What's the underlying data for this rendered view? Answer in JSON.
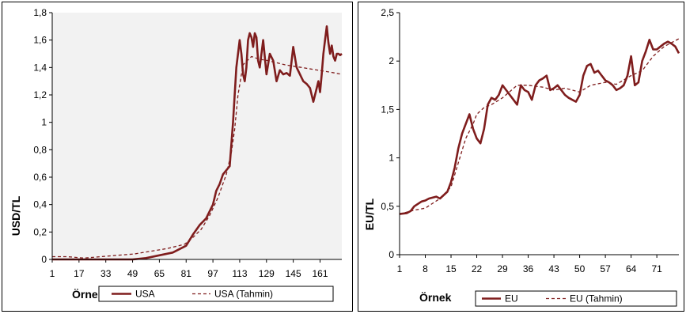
{
  "charts": [
    {
      "type": "line",
      "ylabel": "USD/TL",
      "xlabel": "Örnek",
      "ylim": [
        0,
        1.8
      ],
      "yticks": [
        "0",
        "0,2",
        "0,4",
        "0,6",
        "0,8",
        "1",
        "1,2",
        "1,4",
        "1,6",
        "1,8"
      ],
      "xlim": [
        1,
        174
      ],
      "xticks": [
        "1",
        "17",
        "33",
        "49",
        "65",
        "81",
        "97",
        "113",
        "129",
        "145",
        "161"
      ],
      "grid": false,
      "plot_background": "#f2f2f2",
      "legend_position": "bottom",
      "series": [
        {
          "name": "USA",
          "style": "solid",
          "color": "#7f1d1d",
          "x": [
            1,
            9,
            17,
            25,
            33,
            41,
            49,
            57,
            65,
            73,
            81,
            85,
            89,
            93,
            97,
            99,
            101,
            103,
            105,
            107,
            109,
            111,
            112,
            113,
            114,
            115,
            116,
            117,
            118,
            119,
            120,
            121,
            122,
            123,
            124,
            125,
            127,
            129,
            131,
            133,
            135,
            137,
            139,
            141,
            143,
            145,
            147,
            149,
            151,
            153,
            155,
            157,
            159,
            160,
            161,
            162,
            163,
            164,
            165,
            166,
            167,
            168,
            169,
            170,
            171,
            172,
            173,
            174
          ],
          "y": [
            0.0,
            0.0,
            0.0,
            0.0,
            0.0,
            0.0,
            0.0,
            0.01,
            0.03,
            0.05,
            0.1,
            0.18,
            0.25,
            0.3,
            0.4,
            0.5,
            0.55,
            0.62,
            0.65,
            0.68,
            1.0,
            1.4,
            1.5,
            1.6,
            1.5,
            1.35,
            1.3,
            1.4,
            1.6,
            1.65,
            1.62,
            1.55,
            1.65,
            1.62,
            1.45,
            1.4,
            1.6,
            1.35,
            1.5,
            1.45,
            1.3,
            1.38,
            1.35,
            1.36,
            1.34,
            1.55,
            1.4,
            1.35,
            1.3,
            1.28,
            1.25,
            1.15,
            1.25,
            1.3,
            1.22,
            1.35,
            1.5,
            1.6,
            1.7,
            1.58,
            1.5,
            1.56,
            1.48,
            1.45,
            1.5,
            1.5,
            1.49,
            1.5
          ]
        },
        {
          "name": "USA (Tahmin)",
          "style": "dashed",
          "color": "#7f1d1d",
          "x": [
            1,
            10,
            20,
            30,
            40,
            50,
            60,
            70,
            80,
            85,
            90,
            95,
            100,
            105,
            108,
            110,
            112,
            115,
            120,
            125,
            130,
            140,
            150,
            160,
            170,
            174
          ],
          "y": [
            0.02,
            0.02,
            0.01,
            0.02,
            0.03,
            0.04,
            0.06,
            0.08,
            0.11,
            0.16,
            0.22,
            0.32,
            0.45,
            0.62,
            0.78,
            0.95,
            1.2,
            1.42,
            1.48,
            1.46,
            1.45,
            1.42,
            1.4,
            1.38,
            1.36,
            1.35
          ]
        }
      ]
    },
    {
      "type": "line",
      "ylabel": "EU/TL",
      "xlabel": "Örnek",
      "ylim": [
        0,
        2.5
      ],
      "yticks": [
        "0",
        "0,5",
        "1",
        "1,5",
        "2",
        "2,5"
      ],
      "xlim": [
        1,
        77
      ],
      "xticks": [
        "1",
        "8",
        "15",
        "22",
        "29",
        "36",
        "43",
        "50",
        "57",
        "64",
        "71"
      ],
      "grid": false,
      "plot_background": "#ffffff",
      "legend_position": "bottom",
      "series": [
        {
          "name": "EU",
          "style": "solid",
          "color": "#7f1d1d",
          "x": [
            1,
            3,
            4,
            5,
            7,
            8,
            9,
            11,
            12,
            14,
            15,
            16,
            17,
            18,
            19,
            20,
            21,
            22,
            23,
            24,
            25,
            26,
            27,
            28,
            29,
            30,
            31,
            32,
            33,
            34,
            35,
            36,
            37,
            38,
            39,
            40,
            41,
            42,
            43,
            44,
            45,
            46,
            47,
            48,
            49,
            50,
            51,
            52,
            53,
            54,
            55,
            56,
            57,
            58,
            59,
            60,
            61,
            62,
            63,
            64,
            65,
            66,
            67,
            68,
            69,
            70,
            71,
            72,
            73,
            74,
            75,
            76,
            77
          ],
          "y": [
            0.42,
            0.43,
            0.45,
            0.5,
            0.55,
            0.56,
            0.58,
            0.6,
            0.58,
            0.65,
            0.75,
            0.9,
            1.1,
            1.25,
            1.35,
            1.45,
            1.3,
            1.2,
            1.15,
            1.3,
            1.55,
            1.62,
            1.6,
            1.65,
            1.75,
            1.7,
            1.65,
            1.6,
            1.55,
            1.75,
            1.7,
            1.68,
            1.6,
            1.75,
            1.8,
            1.82,
            1.85,
            1.7,
            1.72,
            1.75,
            1.7,
            1.65,
            1.62,
            1.6,
            1.58,
            1.65,
            1.85,
            1.95,
            1.97,
            1.88,
            1.9,
            1.85,
            1.8,
            1.78,
            1.75,
            1.7,
            1.72,
            1.75,
            1.85,
            2.05,
            1.75,
            1.78,
            2.0,
            2.1,
            2.22,
            2.12,
            2.12,
            2.15,
            2.18,
            2.2,
            2.18,
            2.15,
            2.08
          ]
        },
        {
          "name": "EU (Tahmin)",
          "style": "dashed",
          "color": "#7f1d1d",
          "x": [
            1,
            5,
            8,
            12,
            15,
            17,
            19,
            21,
            22,
            24,
            26,
            29,
            33,
            36,
            40,
            43,
            46,
            50,
            53,
            57,
            60,
            64,
            67,
            70,
            73,
            77
          ],
          "y": [
            0.42,
            0.46,
            0.48,
            0.58,
            0.7,
            0.95,
            1.2,
            1.35,
            1.45,
            1.52,
            1.55,
            1.62,
            1.75,
            1.75,
            1.73,
            1.7,
            1.72,
            1.68,
            1.75,
            1.78,
            1.76,
            1.85,
            1.9,
            2.05,
            2.15,
            2.23
          ]
        }
      ]
    }
  ]
}
